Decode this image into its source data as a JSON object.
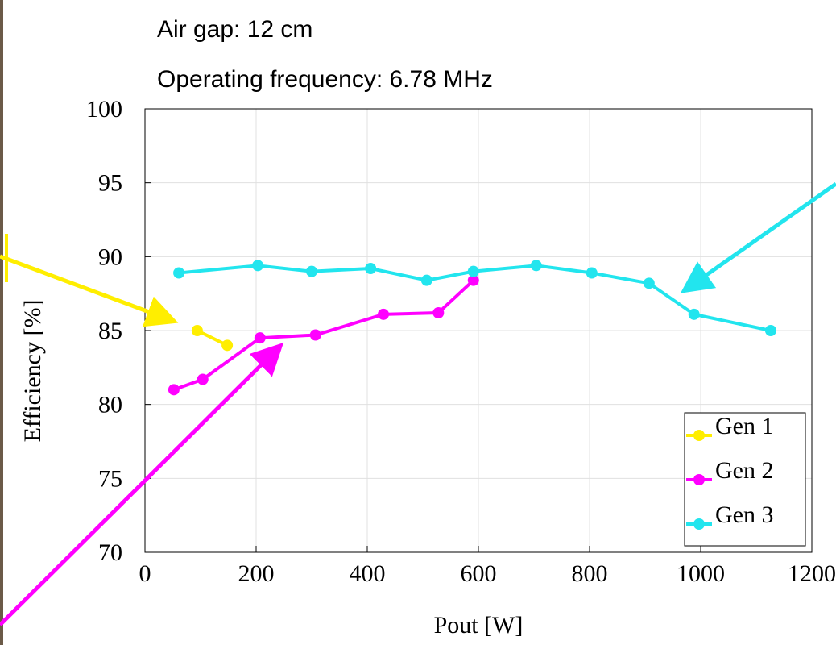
{
  "chart_data": {
    "type": "line",
    "annotations": [
      "Air gap: 12 cm",
      "Operating frequency: 6.78 MHz"
    ],
    "x_label": "Pout [W]",
    "y_label": "Efficiency [%]",
    "xlim": [
      0,
      1200
    ],
    "xticks": [
      0,
      200,
      400,
      600,
      800,
      1000,
      1200
    ],
    "ylim": [
      70,
      100
    ],
    "yticks": [
      70,
      75,
      80,
      85,
      90,
      95,
      100
    ],
    "grid": true,
    "legend": "lower right",
    "series": [
      {
        "name": "Gen 1",
        "color": "#ffee00",
        "x": [
          94,
          148
        ],
        "values": [
          85.0,
          84.0
        ]
      },
      {
        "name": "Gen 2",
        "color": "#ff00ff",
        "x": [
          52,
          104,
          207,
          307,
          429,
          528,
          591
        ],
        "values": [
          81.0,
          81.7,
          84.5,
          84.7,
          86.1,
          86.2,
          88.4
        ]
      },
      {
        "name": "Gen 3",
        "color": "#22e5ee",
        "x": [
          61,
          203,
          300,
          406,
          507,
          591,
          704,
          804,
          907,
          988,
          1126
        ],
        "values": [
          88.9,
          89.4,
          89.0,
          89.2,
          88.4,
          89.0,
          89.4,
          88.9,
          88.2,
          86.1,
          85.0
        ]
      }
    ]
  }
}
